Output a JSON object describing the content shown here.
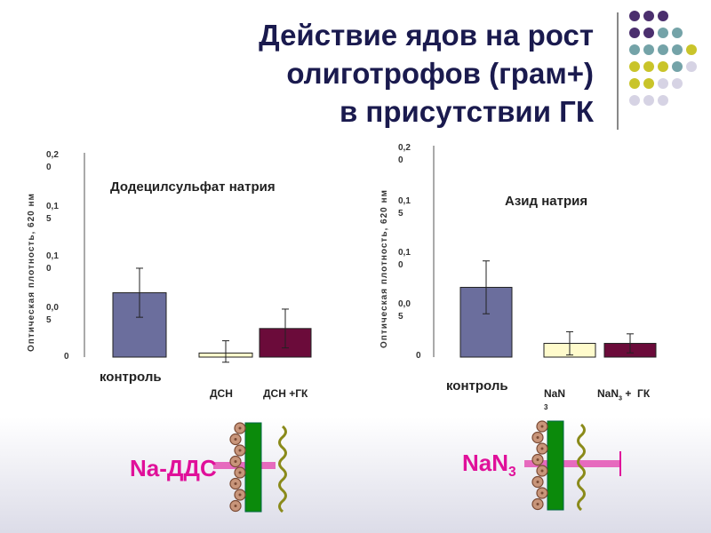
{
  "title_lines": [
    "Действие ядов на рост",
    "олиготрофов (грам+)",
    "в присутствии ГК"
  ],
  "colors": {
    "title": "#1a1a4e",
    "bar_control": "#6b6e9d",
    "bar_light": "#fffbcc",
    "bar_dark": "#6b0b3a",
    "magenta": "#e0109a",
    "dots": [
      "#4b2f6e",
      "#74a3a8",
      "#c9c42a",
      "#d6d3e4"
    ]
  },
  "chart_data": [
    {
      "type": "bar",
      "title": "Додецилсульфат натрия",
      "ylabel": "Оптическая плотность, 620 нм",
      "ylim": [
        0,
        0.2
      ],
      "yticks": [
        "0",
        "0,05",
        "0,10",
        "0,15",
        "0,20"
      ],
      "categories": [
        "контроль",
        "ДСН",
        "ДСН +ГК"
      ],
      "values": [
        0.063,
        0.004,
        0.028
      ],
      "errors": [
        0.024,
        0.012,
        0.019
      ]
    },
    {
      "type": "bar",
      "title": "Азид натрия",
      "ylabel": "Оптическая плотность, 620 нм",
      "ylim": [
        0,
        0.2
      ],
      "yticks": [
        "0",
        "0,05",
        "0,10",
        "0,15",
        "0,20"
      ],
      "categories": [
        "контроль",
        "NaN3",
        "NaN3 +  ГК"
      ],
      "values": [
        0.066,
        0.013,
        0.013
      ],
      "errors": [
        0.025,
        0.011,
        0.009
      ]
    }
  ],
  "diagram_left": {
    "label": "Na-ДДС"
  },
  "diagram_right": {
    "label_main": "NaN",
    "label_sub": "3"
  }
}
